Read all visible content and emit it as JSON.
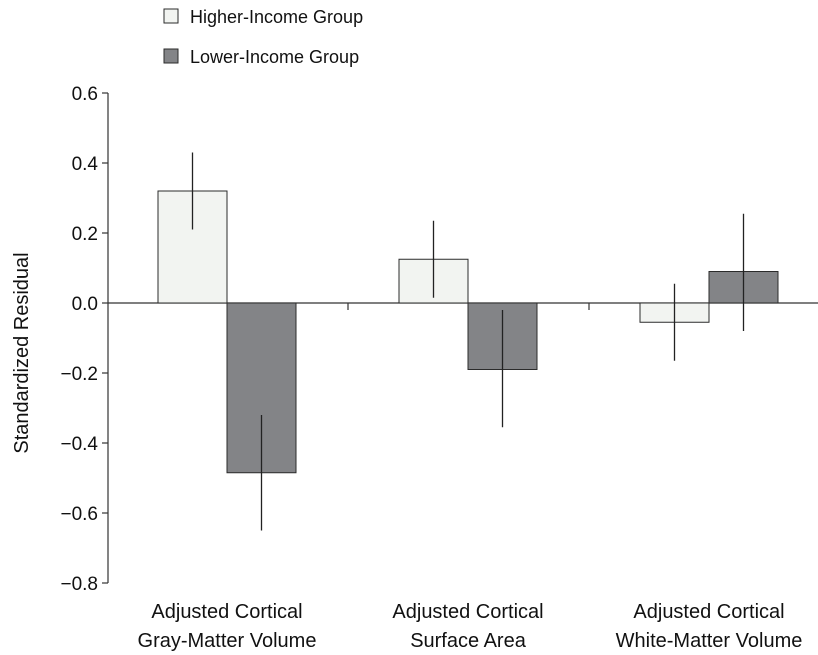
{
  "chart_data": {
    "type": "bar",
    "title": "",
    "xlabel": "",
    "ylabel": "Standardized Residual",
    "ylim": [
      -0.8,
      0.6
    ],
    "yticks": [
      0.6,
      0.4,
      0.2,
      0.0,
      -0.2,
      -0.4,
      -0.6,
      -0.8
    ],
    "ytick_labels": [
      "0.6",
      "0.4",
      "0.2",
      "0.0",
      "−0.2",
      "−0.4",
      "−0.6",
      "−0.8"
    ],
    "categories": [
      [
        "Adjusted Cortical",
        "Gray-Matter Volume"
      ],
      [
        "Adjusted Cortical",
        "Surface Area"
      ],
      [
        "Adjusted Cortical",
        "White-Matter Volume"
      ]
    ],
    "series": [
      {
        "name": "Higher-Income Group",
        "color": "#f2f4f1",
        "values": [
          0.32,
          0.125,
          -0.055
        ],
        "errors": [
          [
            0.21,
            0.43
          ],
          [
            0.015,
            0.235
          ],
          [
            -0.165,
            0.055
          ]
        ]
      },
      {
        "name": "Lower-Income Group",
        "color": "#838487",
        "values": [
          -0.485,
          -0.19,
          0.09
        ],
        "errors": [
          [
            -0.65,
            -0.32
          ],
          [
            -0.355,
            -0.02
          ],
          [
            -0.08,
            0.255
          ]
        ]
      }
    ],
    "grid": false,
    "legend_position": "top-left"
  }
}
